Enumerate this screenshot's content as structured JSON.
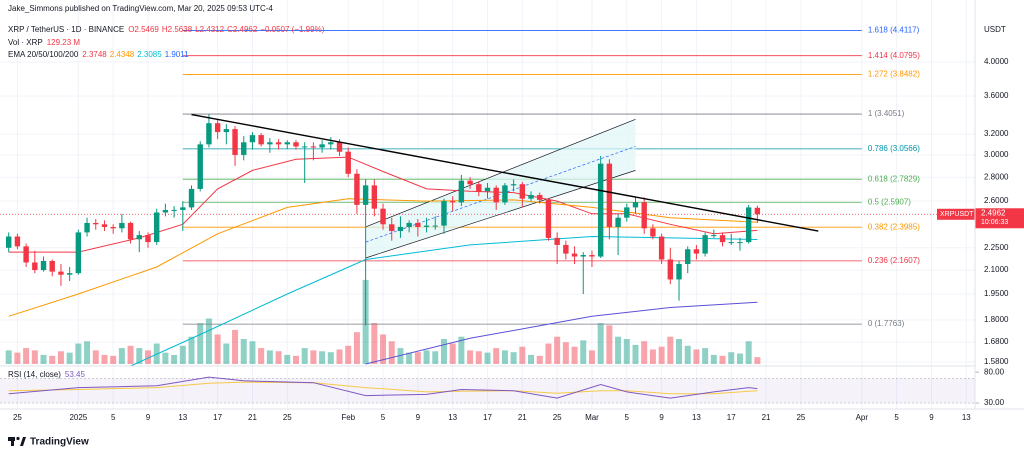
{
  "header": {
    "author": "Jake_Simmons published on TradingView.com, Mar 20, 2025 09:53 UTC-4",
    "symbol": "XRP / TetherUS · 1D · BINANCE",
    "ohlc": [
      "O2.5469",
      "H2.5638",
      "L2.4312",
      "C2.4962",
      "−0.0507 (−1.99%)"
    ],
    "vol_label": "Vol · XRP",
    "vol_value": "129.23 M",
    "ema_label": "EMA 20/50/100/200",
    "ema_values": [
      "2.3748",
      "2.4348",
      "2.3085",
      "1.9011"
    ]
  },
  "footer": {
    "brand": "TradingView"
  },
  "chart_data": {
    "type": "candlestick",
    "currency": "USDT",
    "log_scale": true,
    "grid": true,
    "up_color": "#089981",
    "down_color": "#f23645",
    "xlim": [
      "2024-12-23",
      "2025-04-14"
    ],
    "ylim": [
      1.565,
      4.7
    ],
    "yticks": [
      {
        "value": 4,
        "label": "4.0000"
      },
      {
        "value": 3.6,
        "label": "3.6000"
      },
      {
        "value": 3.2,
        "label": "3.2000"
      },
      {
        "value": 3,
        "label": "3.0000"
      },
      {
        "value": 2.8,
        "label": "2.8000"
      },
      {
        "value": 2.6,
        "label": "2.6000"
      },
      {
        "value": 2.25,
        "label": "2.2500"
      },
      {
        "value": 2.1,
        "label": "2.1000"
      },
      {
        "value": 1.95,
        "label": "1.9500"
      },
      {
        "value": 1.8,
        "label": "1.8000"
      },
      {
        "value": 1.68,
        "label": "1.6800"
      },
      {
        "value": 1.58,
        "label": "1.5800"
      }
    ],
    "xticks": [
      {
        "value": "2024-12-25",
        "label": "25"
      },
      {
        "value": "2025-01-01",
        "label": "2025"
      },
      {
        "value": "2025-01-05",
        "label": "5"
      },
      {
        "value": "2025-01-09",
        "label": "9"
      },
      {
        "value": "2025-01-13",
        "label": "13"
      },
      {
        "value": "2025-01-17",
        "label": "17"
      },
      {
        "value": "2025-01-21",
        "label": "21"
      },
      {
        "value": "2025-01-25",
        "label": "25"
      },
      {
        "value": "2025-02-01",
        "label": "Feb"
      },
      {
        "value": "2025-02-05",
        "label": "5"
      },
      {
        "value": "2025-02-09",
        "label": "9"
      },
      {
        "value": "2025-02-13",
        "label": "13"
      },
      {
        "value": "2025-02-17",
        "label": "17"
      },
      {
        "value": "2025-02-21",
        "label": "21"
      },
      {
        "value": "2025-02-25",
        "label": "25"
      },
      {
        "value": "2025-03-01",
        "label": "Mar"
      },
      {
        "value": "2025-03-05",
        "label": "5"
      },
      {
        "value": "2025-03-09",
        "label": "9"
      },
      {
        "value": "2025-03-13",
        "label": "13"
      },
      {
        "value": "2025-03-17",
        "label": "17"
      },
      {
        "value": "2025-03-21",
        "label": "21"
      },
      {
        "value": "2025-03-25",
        "label": "25"
      },
      {
        "value": "2025-04-01",
        "label": "Apr"
      },
      {
        "value": "2025-04-05",
        "label": "5"
      },
      {
        "value": "2025-04-09",
        "label": "9"
      },
      {
        "value": "2025-04-13",
        "label": "13"
      }
    ],
    "x": [
      "2024-12-24",
      "2024-12-25",
      "2024-12-26",
      "2024-12-27",
      "2024-12-28",
      "2024-12-29",
      "2024-12-30",
      "2024-12-31",
      "2025-01-01",
      "2025-01-02",
      "2025-01-03",
      "2025-01-04",
      "2025-01-05",
      "2025-01-06",
      "2025-01-07",
      "2025-01-08",
      "2025-01-09",
      "2025-01-10",
      "2025-01-11",
      "2025-01-12",
      "2025-01-13",
      "2025-01-14",
      "2025-01-15",
      "2025-01-16",
      "2025-01-17",
      "2025-01-18",
      "2025-01-19",
      "2025-01-20",
      "2025-01-21",
      "2025-01-22",
      "2025-01-23",
      "2025-01-24",
      "2025-01-25",
      "2025-01-26",
      "2025-01-27",
      "2025-01-28",
      "2025-01-29",
      "2025-01-30",
      "2025-01-31",
      "2025-02-01",
      "2025-02-02",
      "2025-02-03",
      "2025-02-04",
      "2025-02-05",
      "2025-02-06",
      "2025-02-07",
      "2025-02-08",
      "2025-02-09",
      "2025-02-10",
      "2025-02-11",
      "2025-02-12",
      "2025-02-13",
      "2025-02-14",
      "2025-02-15",
      "2025-02-16",
      "2025-02-17",
      "2025-02-18",
      "2025-02-19",
      "2025-02-20",
      "2025-02-21",
      "2025-02-22",
      "2025-02-23",
      "2025-02-24",
      "2025-02-25",
      "2025-02-26",
      "2025-02-27",
      "2025-02-28",
      "2025-03-01",
      "2025-03-02",
      "2025-03-03",
      "2025-03-04",
      "2025-03-05",
      "2025-03-06",
      "2025-03-07",
      "2025-03-08",
      "2025-03-09",
      "2025-03-10",
      "2025-03-11",
      "2025-03-12",
      "2025-03-13",
      "2025-03-14",
      "2025-03-15",
      "2025-03-16",
      "2025-03-17",
      "2025-03-18",
      "2025-03-19",
      "2025-03-20"
    ],
    "ohlc": [
      [
        2.25,
        2.36,
        2.22,
        2.33
      ],
      [
        2.33,
        2.35,
        2.24,
        2.26
      ],
      [
        2.26,
        2.28,
        2.12,
        2.15
      ],
      [
        2.15,
        2.23,
        2.08,
        2.1
      ],
      [
        2.1,
        2.19,
        2.09,
        2.16
      ],
      [
        2.16,
        2.17,
        2.06,
        2.09
      ],
      [
        2.09,
        2.14,
        2.0,
        2.07
      ],
      [
        2.07,
        2.12,
        2.03,
        2.08
      ],
      [
        2.08,
        2.38,
        2.07,
        2.36
      ],
      [
        2.36,
        2.47,
        2.33,
        2.43
      ],
      [
        2.43,
        2.46,
        2.38,
        2.42
      ],
      [
        2.42,
        2.45,
        2.37,
        2.4
      ],
      [
        2.4,
        2.42,
        2.35,
        2.39
      ],
      [
        2.39,
        2.5,
        2.36,
        2.43
      ],
      [
        2.43,
        2.44,
        2.28,
        2.31
      ],
      [
        2.31,
        2.37,
        2.22,
        2.34
      ],
      [
        2.34,
        2.36,
        2.25,
        2.29
      ],
      [
        2.29,
        2.54,
        2.27,
        2.51
      ],
      [
        2.51,
        2.58,
        2.48,
        2.53
      ],
      [
        2.53,
        2.56,
        2.47,
        2.53
      ],
      [
        2.53,
        2.6,
        2.37,
        2.55
      ],
      [
        2.55,
        2.73,
        2.53,
        2.7
      ],
      [
        2.7,
        3.13,
        2.68,
        3.1
      ],
      [
        3.1,
        3.4,
        3.07,
        3.31
      ],
      [
        3.31,
        3.35,
        3.15,
        3.22
      ],
      [
        3.22,
        3.3,
        3.1,
        3.25
      ],
      [
        3.25,
        3.28,
        2.9,
        3.0
      ],
      [
        3.0,
        3.18,
        2.95,
        3.12
      ],
      [
        3.12,
        3.22,
        3.05,
        3.19
      ],
      [
        3.19,
        3.21,
        3.08,
        3.1
      ],
      [
        3.1,
        3.16,
        3.02,
        3.12
      ],
      [
        3.12,
        3.15,
        3.05,
        3.1
      ],
      [
        3.1,
        3.14,
        3.06,
        3.12
      ],
      [
        3.12,
        3.14,
        3.05,
        3.08
      ],
      [
        3.08,
        3.12,
        2.75,
        3.08
      ],
      [
        3.08,
        3.12,
        2.95,
        3.07
      ],
      [
        3.07,
        3.14,
        3.02,
        3.1
      ],
      [
        3.1,
        3.17,
        3.05,
        3.12
      ],
      [
        3.12,
        3.15,
        2.99,
        3.03
      ],
      [
        3.03,
        3.07,
        2.8,
        2.83
      ],
      [
        2.83,
        2.87,
        2.5,
        2.57
      ],
      [
        2.57,
        2.78,
        1.77,
        2.73
      ],
      [
        2.73,
        2.78,
        2.48,
        2.54
      ],
      [
        2.54,
        2.58,
        2.38,
        2.42
      ],
      [
        2.42,
        2.47,
        2.3,
        2.37
      ],
      [
        2.37,
        2.48,
        2.32,
        2.4
      ],
      [
        2.4,
        2.45,
        2.36,
        2.43
      ],
      [
        2.43,
        2.46,
        2.33,
        2.4
      ],
      [
        2.4,
        2.47,
        2.36,
        2.41
      ],
      [
        2.41,
        2.48,
        2.38,
        2.41
      ],
      [
        2.41,
        2.62,
        2.35,
        2.6
      ],
      [
        2.6,
        2.64,
        2.52,
        2.59
      ],
      [
        2.59,
        2.82,
        2.56,
        2.77
      ],
      [
        2.77,
        2.8,
        2.7,
        2.74
      ],
      [
        2.74,
        2.76,
        2.64,
        2.68
      ],
      [
        2.68,
        2.75,
        2.62,
        2.71
      ],
      [
        2.71,
        2.73,
        2.53,
        2.59
      ],
      [
        2.59,
        2.75,
        2.57,
        2.73
      ],
      [
        2.73,
        2.78,
        2.68,
        2.74
      ],
      [
        2.74,
        2.76,
        2.55,
        2.62
      ],
      [
        2.62,
        2.68,
        2.6,
        2.65
      ],
      [
        2.65,
        2.67,
        2.58,
        2.61
      ],
      [
        2.61,
        2.62,
        2.3,
        2.32
      ],
      [
        2.32,
        2.36,
        2.14,
        2.27
      ],
      [
        2.27,
        2.3,
        2.17,
        2.21
      ],
      [
        2.21,
        2.26,
        2.14,
        2.19
      ],
      [
        2.19,
        2.22,
        1.95,
        2.2
      ],
      [
        2.2,
        2.23,
        2.12,
        2.19
      ],
      [
        2.19,
        2.99,
        2.18,
        2.92
      ],
      [
        2.92,
        2.96,
        2.31,
        2.4
      ],
      [
        2.4,
        2.5,
        2.2,
        2.47
      ],
      [
        2.47,
        2.58,
        2.44,
        2.55
      ],
      [
        2.55,
        2.63,
        2.5,
        2.59
      ],
      [
        2.59,
        2.63,
        2.35,
        2.39
      ],
      [
        2.39,
        2.42,
        2.31,
        2.33
      ],
      [
        2.33,
        2.35,
        2.14,
        2.17
      ],
      [
        2.17,
        2.25,
        2.01,
        2.04
      ],
      [
        2.04,
        2.16,
        1.91,
        2.14
      ],
      [
        2.14,
        2.26,
        2.08,
        2.24
      ],
      [
        2.24,
        2.27,
        2.17,
        2.21
      ],
      [
        2.21,
        2.36,
        2.19,
        2.34
      ],
      [
        2.34,
        2.38,
        2.32,
        2.34
      ],
      [
        2.34,
        2.36,
        2.26,
        2.29
      ],
      [
        2.29,
        2.35,
        2.27,
        2.29
      ],
      [
        2.29,
        2.32,
        2.23,
        2.29
      ],
      [
        2.29,
        2.57,
        2.28,
        2.55
      ],
      [
        2.5469,
        2.5638,
        2.4312,
        2.4962
      ]
    ],
    "volume": [
      300,
      250,
      350,
      300,
      200,
      180,
      280,
      250,
      450,
      500,
      300,
      200,
      180,
      350,
      400,
      350,
      300,
      450,
      250,
      200,
      400,
      600,
      900,
      1000,
      650,
      450,
      750,
      550,
      500,
      350,
      300,
      280,
      200,
      180,
      350,
      300,
      280,
      260,
      320,
      400,
      700,
      1850,
      900,
      650,
      500,
      350,
      250,
      260,
      300,
      280,
      550,
      450,
      600,
      300,
      280,
      250,
      350,
      300,
      260,
      380,
      200,
      180,
      450,
      600,
      480,
      380,
      520,
      300,
      900,
      850,
      600,
      550,
      420,
      500,
      320,
      380,
      600,
      550,
      400,
      320,
      350,
      200,
      180,
      260,
      230,
      500,
      150
    ],
    "volume_lim": [
      0,
      2200
    ],
    "ema": [
      {
        "color": "#f23645",
        "x": [
          "2024-12-24",
          "2025-01-01",
          "2025-01-08",
          "2025-01-13",
          "2025-01-17",
          "2025-01-21",
          "2025-01-26",
          "2025-02-01",
          "2025-02-05",
          "2025-02-10",
          "2025-02-15",
          "2025-02-20",
          "2025-02-25",
          "2025-03-01",
          "2025-03-05",
          "2025-03-10",
          "2025-03-15",
          "2025-03-20"
        ],
        "values": [
          2.22,
          2.22,
          2.32,
          2.42,
          2.7,
          2.86,
          2.96,
          2.98,
          2.85,
          2.7,
          2.68,
          2.67,
          2.6,
          2.5,
          2.5,
          2.42,
          2.35,
          2.3748
        ]
      },
      {
        "color": "#ff9800",
        "x": [
          "2024-12-24",
          "2025-01-01",
          "2025-01-10",
          "2025-01-17",
          "2025-01-25",
          "2025-02-01",
          "2025-02-10",
          "2025-02-20",
          "2025-03-01",
          "2025-03-10",
          "2025-03-20"
        ],
        "values": [
          1.82,
          1.95,
          2.12,
          2.35,
          2.55,
          2.62,
          2.6,
          2.61,
          2.55,
          2.47,
          2.4348
        ]
      },
      {
        "color": "#00bcd4",
        "x": [
          "2025-01-07",
          "2025-01-15",
          "2025-01-25",
          "2025-02-03",
          "2025-02-15",
          "2025-03-01",
          "2025-03-10",
          "2025-03-20"
        ],
        "values": [
          1.56,
          1.72,
          1.95,
          2.17,
          2.27,
          2.33,
          2.32,
          2.3085
        ]
      },
      {
        "color": "#5b4fd6",
        "x": [
          "2025-02-03",
          "2025-02-15",
          "2025-03-01",
          "2025-03-10",
          "2025-03-20"
        ],
        "values": [
          1.57,
          1.7,
          1.82,
          1.87,
          1.9011
        ]
      }
    ],
    "fib_x": [
      "2025-01-13",
      "2025-04-01"
    ],
    "fib_levels": [
      {
        "value": 4.4117,
        "label": "1.618 (4.4117)",
        "color": "#2962ff"
      },
      {
        "value": 4.0795,
        "label": "1.414 (4.0795)",
        "color": "#f23645"
      },
      {
        "value": 3.8482,
        "label": "1.272 (3.8482)",
        "color": "#ff9800"
      },
      {
        "value": 3.4051,
        "label": "1 (3.4051)",
        "color": "#787b86"
      },
      {
        "value": 3.0566,
        "label": "0.786 (3.0566)",
        "color": "#0097a7"
      },
      {
        "value": 2.7829,
        "label": "0.618 (2.7829)",
        "color": "#4caf50"
      },
      {
        "value": 2.5907,
        "label": "0.5 (2.5907)",
        "color": "#4caf50"
      },
      {
        "value": 2.3985,
        "label": "0.382 (2.3985)",
        "color": "#ff9800"
      },
      {
        "value": 2.1607,
        "label": "0.236 (2.1607)",
        "color": "#f23645"
      },
      {
        "value": 1.7763,
        "label": "0 (1.7763)",
        "color": "#787b86"
      }
    ],
    "trendline": {
      "color": "#000000",
      "x": [
        "2025-01-14",
        "2025-03-27"
      ],
      "values": [
        3.4,
        2.37
      ]
    },
    "channel": {
      "color": "#131722",
      "fill": "#e0f7f7",
      "x": [
        "2025-02-03",
        "2025-03-06"
      ],
      "lower": [
        2.18,
        2.86
      ],
      "upper": [
        2.4,
        3.35
      ],
      "mid": [
        2.29,
        3.08
      ]
    },
    "last_price": {
      "symbol": "XRPUSDT",
      "value": 2.4962,
      "countdown": "10:06:33",
      "color": "#f23645"
    },
    "rsi": {
      "label": "RSI (14, close)",
      "value": 53.45,
      "color": "#7e57c2",
      "signal_color": "#f7c948",
      "ylim": [
        22,
        90
      ],
      "yticks": [
        {
          "value": 80,
          "label": "80.00"
        },
        {
          "value": 30,
          "label": "30.00"
        }
      ],
      "band": [
        30,
        70
      ],
      "x": [
        "2024-12-24",
        "2025-01-01",
        "2025-01-10",
        "2025-01-16",
        "2025-01-20",
        "2025-01-28",
        "2025-02-03",
        "2025-02-10",
        "2025-02-14",
        "2025-02-20",
        "2025-02-25",
        "2025-03-02",
        "2025-03-05",
        "2025-03-10",
        "2025-03-15",
        "2025-03-19",
        "2025-03-20"
      ],
      "values": [
        45,
        55,
        58,
        72,
        66,
        63,
        42,
        44,
        52,
        50,
        38,
        60,
        48,
        38,
        48,
        55,
        53.45
      ],
      "signal": [
        50,
        52,
        55,
        62,
        64,
        63,
        55,
        48,
        49,
        50,
        46,
        50,
        50,
        45,
        45,
        49,
        50
      ]
    }
  }
}
